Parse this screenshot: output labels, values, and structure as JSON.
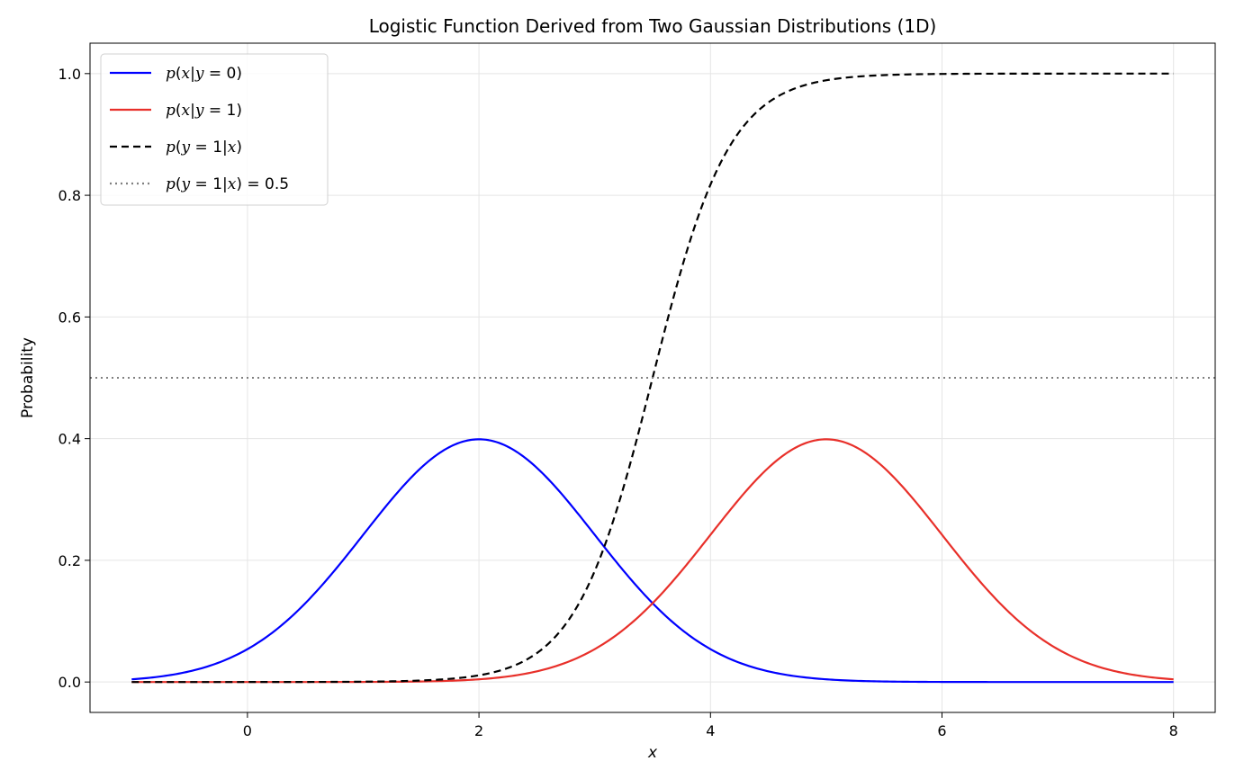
{
  "chart_data": {
    "type": "line",
    "title": "Logistic Function Derived from Two Gaussian Distributions (1D)",
    "xlabel": "x",
    "ylabel": "Probability",
    "xlim": [
      -1.36,
      8.36
    ],
    "ylim": [
      -0.05,
      1.05
    ],
    "xticks": [
      0,
      2,
      4,
      6,
      8
    ],
    "yticks": [
      0.0,
      0.2,
      0.4,
      0.6,
      0.8,
      1.0
    ],
    "xtick_labels": [
      "0",
      "2",
      "4",
      "6",
      "8"
    ],
    "ytick_labels": [
      "0.0",
      "0.2",
      "0.4",
      "0.6",
      "0.8",
      "1.0"
    ],
    "grid": true,
    "legend_position": "upper-left",
    "series": [
      {
        "name": "p(x|y=0)",
        "color": "#0000ff",
        "style": "solid",
        "kind": "gaussian_pdf",
        "mean": 2,
        "std": 1,
        "x_range": [
          -1,
          8
        ],
        "sample_points": [
          {
            "x": -1,
            "y": 0.0044
          },
          {
            "x": 0,
            "y": 0.054
          },
          {
            "x": 1,
            "y": 0.242
          },
          {
            "x": 2,
            "y": 0.399
          },
          {
            "x": 3,
            "y": 0.242
          },
          {
            "x": 4,
            "y": 0.054
          },
          {
            "x": 5,
            "y": 0.0044
          },
          {
            "x": 8,
            "y": 0.0
          }
        ]
      },
      {
        "name": "p(x|y=1)",
        "color": "#e8302a",
        "style": "solid",
        "kind": "gaussian_pdf",
        "mean": 5,
        "std": 1,
        "x_range": [
          -1,
          8
        ],
        "sample_points": [
          {
            "x": -1,
            "y": 0.0
          },
          {
            "x": 2,
            "y": 0.0044
          },
          {
            "x": 3,
            "y": 0.054
          },
          {
            "x": 4,
            "y": 0.242
          },
          {
            "x": 5,
            "y": 0.399
          },
          {
            "x": 6,
            "y": 0.242
          },
          {
            "x": 7,
            "y": 0.054
          },
          {
            "x": 8,
            "y": 0.0044
          }
        ]
      },
      {
        "name": "p(y=1|x)",
        "color": "#000000",
        "style": "dashed",
        "kind": "logistic",
        "midpoint": 3.5,
        "slope": 3,
        "x_range": [
          -1,
          8
        ],
        "sample_points": [
          {
            "x": -1,
            "y": 0.0
          },
          {
            "x": 2,
            "y": 0.011
          },
          {
            "x": 3,
            "y": 0.182
          },
          {
            "x": 3.5,
            "y": 0.5
          },
          {
            "x": 4,
            "y": 0.818
          },
          {
            "x": 5,
            "y": 0.989
          },
          {
            "x": 8,
            "y": 1.0
          }
        ]
      },
      {
        "name": "p(y=1|x) = 0.5",
        "color": "#808080",
        "style": "dotted",
        "kind": "hline",
        "y": 0.5
      }
    ],
    "legend": [
      {
        "prefix": "p(",
        "var": "x",
        "mid": "|",
        "var2": "y",
        "suffix": " = 0)"
      },
      {
        "prefix": "p(",
        "var": "x",
        "mid": "|",
        "var2": "y",
        "suffix": " = 1)"
      },
      {
        "prefix": "p(",
        "var": "y",
        "mid": " = 1|",
        "var2": "x",
        "suffix": ")"
      },
      {
        "prefix": "p(",
        "var": "y",
        "mid": " = 1|",
        "var2": "x",
        "suffix": ") = 0.5"
      }
    ]
  }
}
